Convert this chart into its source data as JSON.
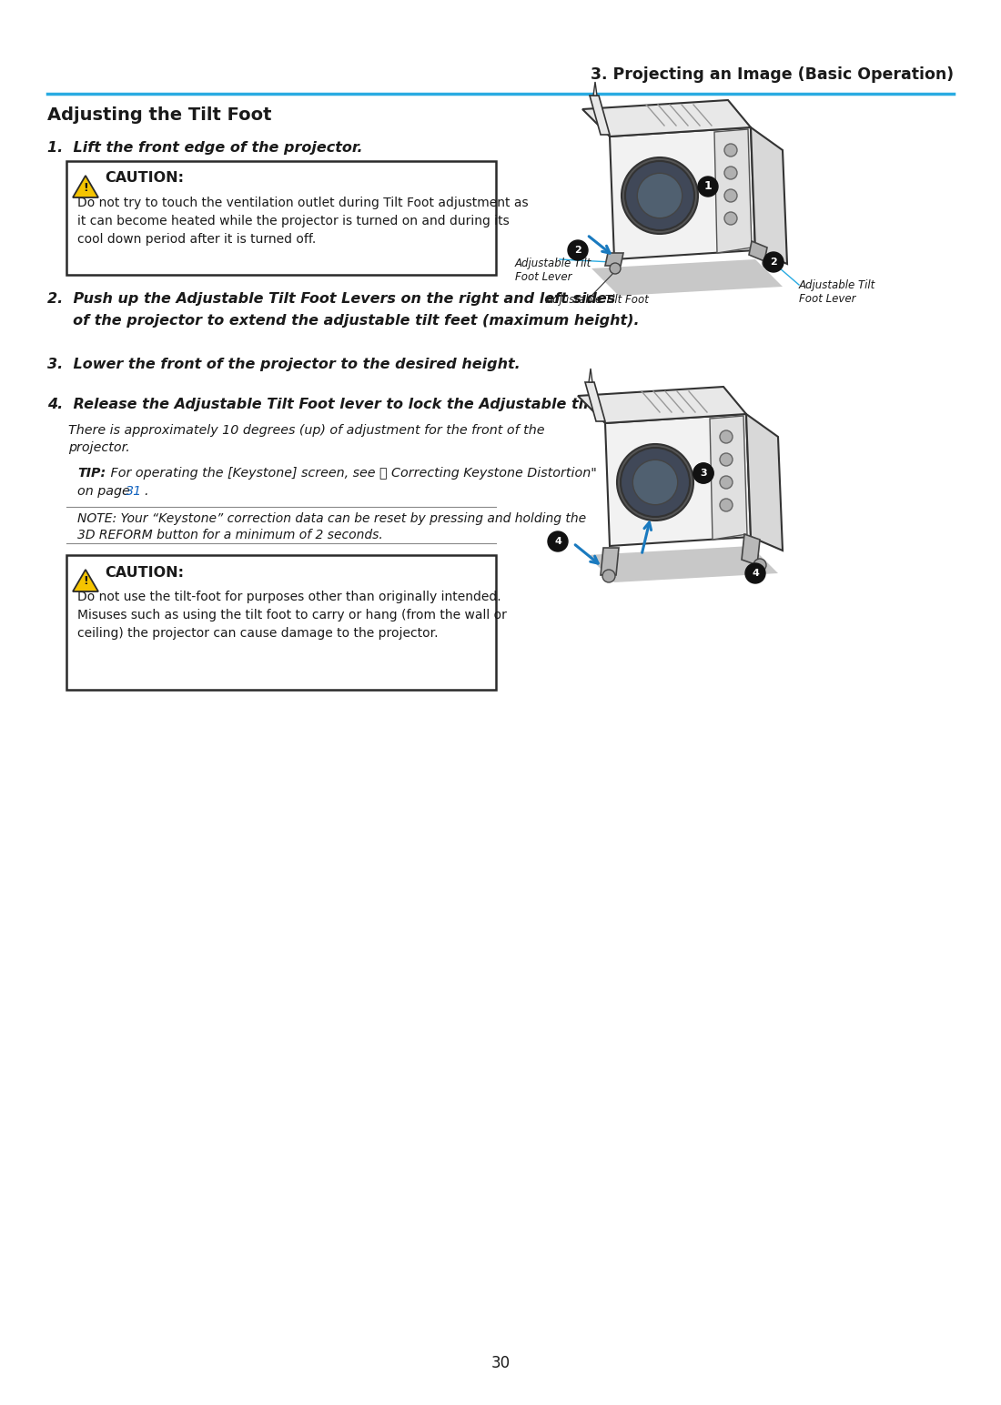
{
  "bg_color": "#ffffff",
  "text_color": "#1a1a1a",
  "header_line_color": "#29abe2",
  "header_text": "3. Projecting an Image (Basic Operation)",
  "section_title": "Adjusting the Tilt Foot",
  "page_number": "30",
  "step1": "1.  Lift the front edge of the projector.",
  "caution1_title": "CAUTION:",
  "caution1_body_l1": "Do not try to touch the ventilation outlet during Tilt Foot adjustment as",
  "caution1_body_l2": "it can become heated while the projector is turned on and during its",
  "caution1_body_l3": "cool down period after it is turned off.",
  "step2_l1": "2.  Push up the Adjustable Tilt Foot Levers on the right and left sides",
  "step2_l2": "     of the projector to extend the adjustable tilt feet (maximum height).",
  "step3": "3.  Lower the front of the projector to the desired height.",
  "step4": "4.  Release the Adjustable Tilt Foot lever to lock the Adjustable tilt foot.",
  "step4_body_l1": "There is approximately 10 degrees (up) of adjustment for the front of the",
  "step4_body_l2": "projector.",
  "tip_bold": "TIP:",
  "tip_rest": " For operating the [Keystone] screen, see ⓔ Correcting Keystone Distortion\"",
  "tip_l2_a": "on page ",
  "tip_l2_b": "31",
  "tip_l2_c": ".",
  "note_l1": "NOTE: Your “Keystone” correction data can be reset by pressing and holding the",
  "note_l2": "3D REFORM button for a minimum of 2 seconds.",
  "caution2_title": "CAUTION:",
  "caution2_body_l1": "Do not use the tilt-foot for purposes other than originally intended.",
  "caution2_body_l2": "Misuses such as using the tilt foot to carry or hang (from the wall or",
  "caution2_body_l3": "ceiling) the projector can cause damage to the projector.",
  "lbl_atfl": "Adjustable Tilt\nFoot Lever",
  "lbl_atf": "Adjustable Tilt Foot",
  "lbl_atfl2": "Adjustable Tilt\nFoot Lever",
  "caution_yellow": "#F5C400",
  "caution_border": "#2a2a2a",
  "blue_link": "#1565c0",
  "arrow_blue": "#1a7abf",
  "diagram_gray": "#cccccc",
  "diagram_light": "#f0f0f0",
  "diagram_dark": "#888888",
  "diagram_shadow": "#b0b0b0"
}
